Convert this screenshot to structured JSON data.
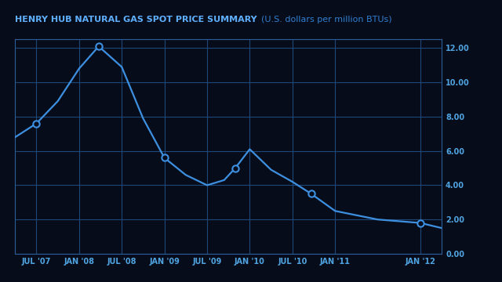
{
  "chart_data": {
    "type": "line",
    "title": "HENRY HUB NATURAL GAS SPOT PRICE SUMMARY",
    "subtitle": "(U.S. dollars per million BTUs)",
    "grid": true,
    "xlim": [
      2007.25,
      2012.25
    ],
    "xticks": [
      {
        "value": 2007.5,
        "label": "JUL '07"
      },
      {
        "value": 2008.0,
        "label": "JAN '08"
      },
      {
        "value": 2008.5,
        "label": "JUL '08"
      },
      {
        "value": 2009.0,
        "label": "JAN '09"
      },
      {
        "value": 2009.5,
        "label": "JUL '09"
      },
      {
        "value": 2010.0,
        "label": "JAN '10"
      },
      {
        "value": 2010.5,
        "label": "JUL '10"
      },
      {
        "value": 2011.0,
        "label": "JAN '11"
      },
      {
        "value": 2012.0,
        "label": "JAN '12"
      }
    ],
    "ylim": [
      0,
      12.5
    ],
    "yticks": [
      {
        "value": 0,
        "label": "0.00"
      },
      {
        "value": 2,
        "label": "2.00"
      },
      {
        "value": 4,
        "label": "4.00"
      },
      {
        "value": 6,
        "label": "6.00"
      },
      {
        "value": 8,
        "label": "8.00"
      },
      {
        "value": 10,
        "label": "10.00"
      },
      {
        "value": 12,
        "label": "12.00"
      }
    ],
    "series": [
      {
        "type": "line",
        "color": "#3d8fe0",
        "line_style": "solid",
        "x": [
          2007.25,
          2007.5,
          2007.75,
          2008.0,
          2008.23,
          2008.5,
          2008.75,
          2009.0,
          2009.25,
          2009.5,
          2009.7,
          2009.83,
          2010.0,
          2010.25,
          2010.5,
          2010.72,
          2011.0,
          2011.5,
          2012.0,
          2012.25
        ],
        "values": [
          6.8,
          7.6,
          8.9,
          10.8,
          12.1,
          10.9,
          7.9,
          5.6,
          4.6,
          4.0,
          4.3,
          5.0,
          6.1,
          4.9,
          4.2,
          3.5,
          2.5,
          2.0,
          1.8,
          1.5
        ]
      },
      {
        "type": "scatter",
        "color": "#3d8fe0",
        "marker": "o",
        "x": [
          2007.5,
          2008.23,
          2009.0,
          2009.83,
          2010.72,
          2012.0
        ],
        "values": [
          7.6,
          12.1,
          5.6,
          5.0,
          3.5,
          1.8
        ]
      }
    ]
  }
}
